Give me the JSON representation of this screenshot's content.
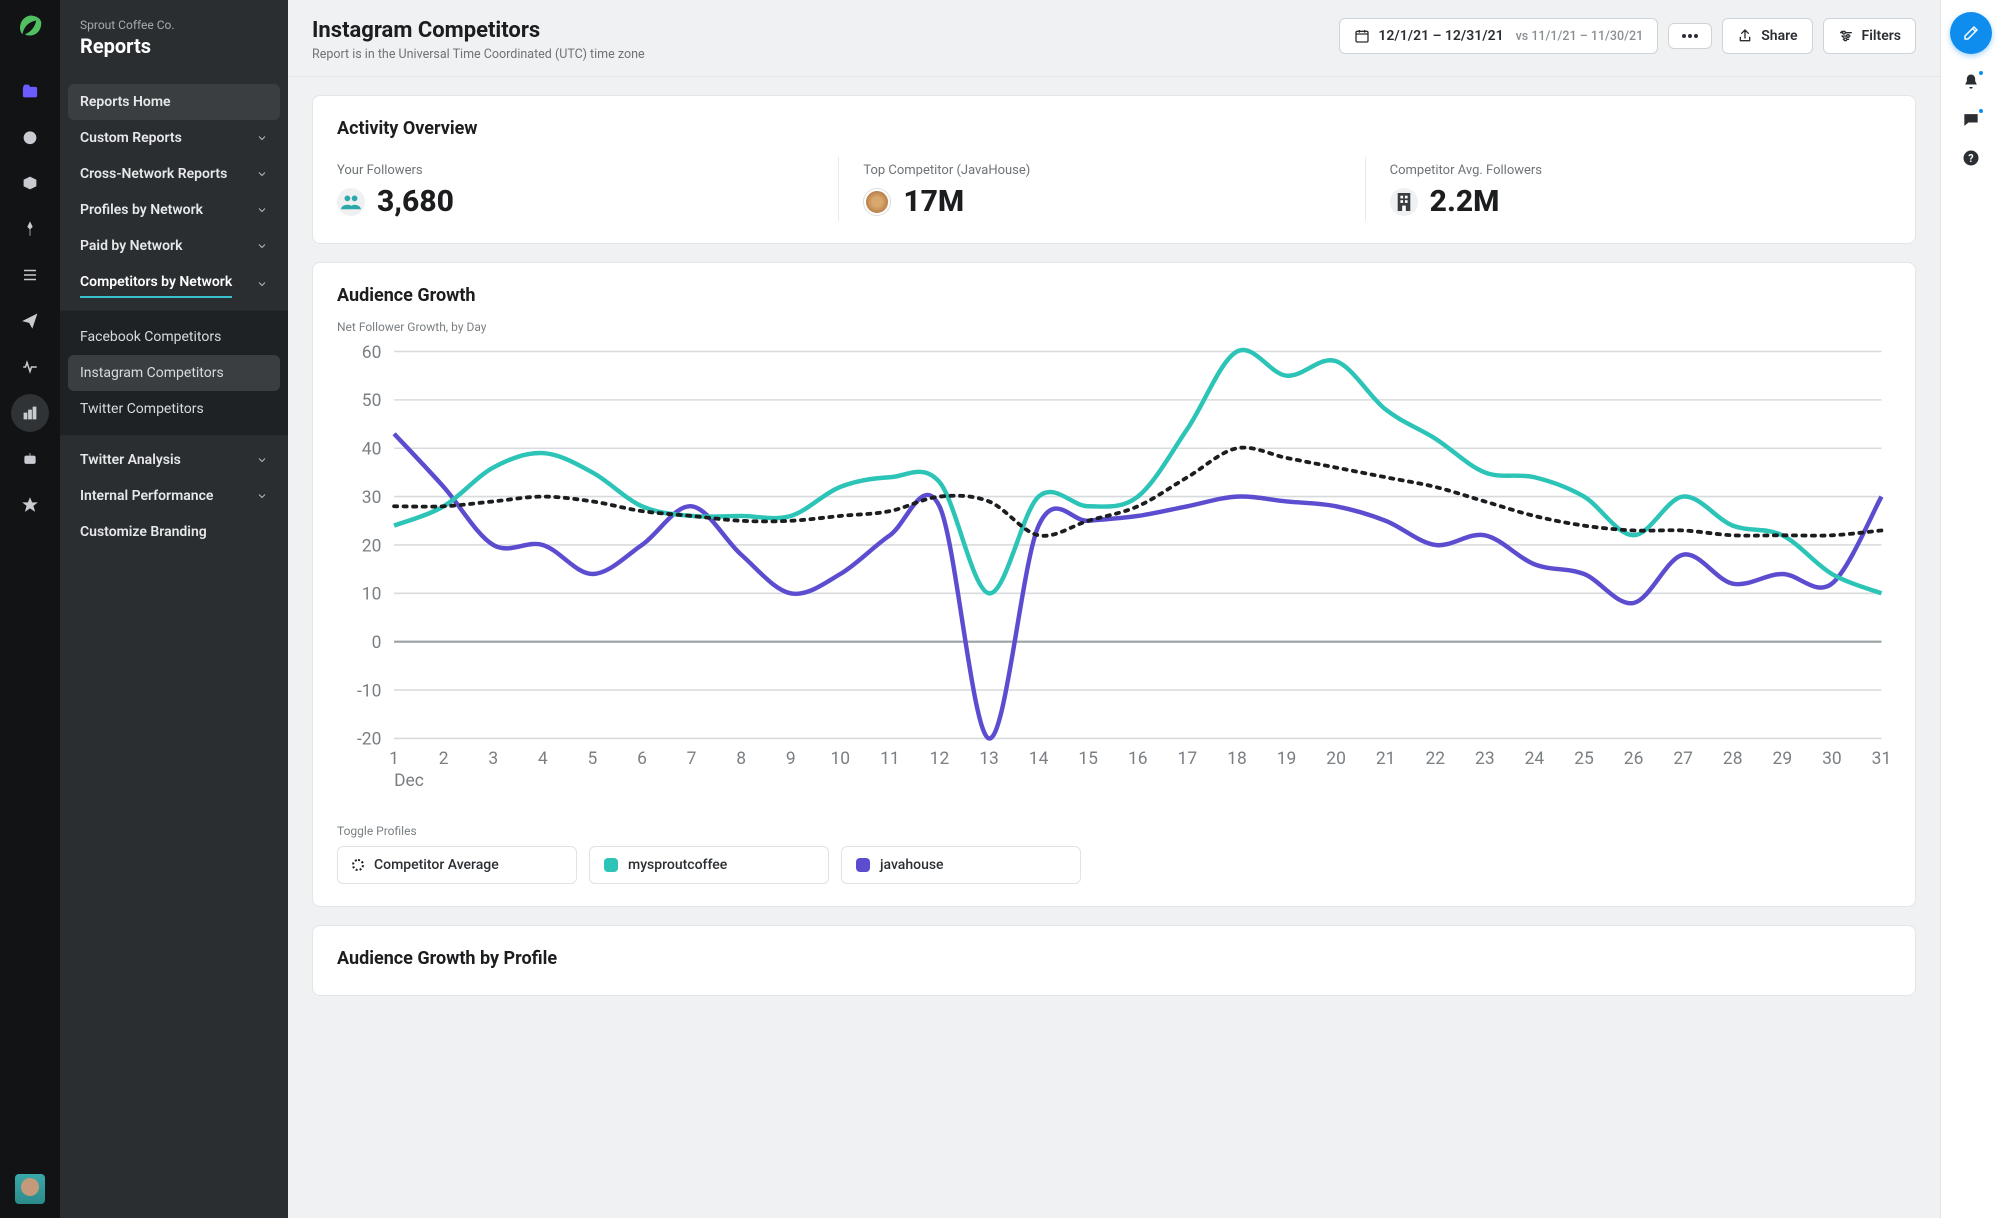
{
  "org": "Sprout Coffee Co.",
  "section": "Reports",
  "rail": [
    {
      "name": "folder",
      "active": false,
      "glyph": "folder"
    },
    {
      "name": "gauge",
      "glyph": "gauge"
    },
    {
      "name": "inbox",
      "glyph": "inbox"
    },
    {
      "name": "pin",
      "glyph": "pin"
    },
    {
      "name": "list",
      "glyph": "list"
    },
    {
      "name": "send",
      "glyph": "send"
    },
    {
      "name": "pulse",
      "glyph": "pulse"
    },
    {
      "name": "reports",
      "glyph": "reports",
      "active": true
    },
    {
      "name": "bot",
      "glyph": "bot"
    },
    {
      "name": "star",
      "glyph": "star"
    }
  ],
  "nav": {
    "home": "Reports Home",
    "groups": [
      {
        "label": "Custom Reports"
      },
      {
        "label": "Cross-Network Reports"
      },
      {
        "label": "Profiles by Network"
      },
      {
        "label": "Paid by Network"
      },
      {
        "label": "Competitors by Network",
        "selected": true
      }
    ],
    "sub": [
      {
        "label": "Facebook Competitors"
      },
      {
        "label": "Instagram Competitors",
        "active": true
      },
      {
        "label": "Twitter Competitors"
      }
    ],
    "tail": [
      {
        "label": "Twitter Analysis",
        "chev": true
      },
      {
        "label": "Internal Performance",
        "chev": true
      },
      {
        "label": "Customize Branding",
        "chev": false
      }
    ]
  },
  "page": {
    "title": "Instagram Competitors",
    "subtitle": "Report is in the Universal Time Coordinated (UTC) time zone",
    "date_range": "12/1/21 – 12/31/21",
    "date_vs": "vs 11/1/21 – 11/30/21",
    "share_label": "Share",
    "filters_label": "Filters"
  },
  "overview": {
    "title": "Activity Overview",
    "metrics": [
      {
        "label": "Your Followers",
        "value": "3,680",
        "icon": "users",
        "icon_color": "#2ca7aa"
      },
      {
        "label": "Top Competitor (JavaHouse)",
        "value": "17M",
        "icon": "avatar"
      },
      {
        "label": "Competitor Avg. Followers",
        "value": "2.2M",
        "icon": "building"
      }
    ]
  },
  "growth": {
    "title": "Audience Growth",
    "chart_subtitle": "Net Follower Growth, by Day",
    "type": "line",
    "x_month": "Dec",
    "x_days": [
      1,
      2,
      3,
      4,
      5,
      6,
      7,
      8,
      9,
      10,
      11,
      12,
      13,
      14,
      15,
      16,
      17,
      18,
      19,
      20,
      21,
      22,
      23,
      24,
      25,
      26,
      27,
      28,
      29,
      30,
      31
    ],
    "ylim": [
      -20,
      60
    ],
    "yticks": [
      -20,
      -10,
      0,
      10,
      20,
      30,
      40,
      50,
      60
    ],
    "grid_color": "#d8dbdd",
    "zero_color": "#9aa0a4",
    "background": "#ffffff",
    "series": {
      "competitor_avg": {
        "label": "Competitor Average",
        "color": "#1b1d1f",
        "style": "dotted",
        "width": 2.4,
        "values": [
          28,
          28,
          29,
          30,
          29,
          27,
          26,
          25,
          25,
          26,
          27,
          30,
          29,
          22,
          25,
          28,
          34,
          40,
          38,
          36,
          34,
          32,
          29,
          26,
          24,
          23,
          23,
          22,
          22,
          22,
          23
        ]
      },
      "mysproutcoffee": {
        "label": "mysproutcoffee",
        "color": "#2bc4b6",
        "style": "solid",
        "width": 2.8,
        "values": [
          24,
          28,
          36,
          39,
          35,
          28,
          26,
          26,
          26,
          32,
          34,
          33,
          10,
          30,
          28,
          30,
          44,
          60,
          55,
          58,
          48,
          42,
          35,
          34,
          30,
          22,
          30,
          24,
          22,
          14,
          10
        ]
      },
      "javahouse": {
        "label": "javahouse",
        "color": "#5c4dd0",
        "style": "solid",
        "width": 2.8,
        "values": [
          43,
          32,
          20,
          20,
          14,
          20,
          28,
          18,
          10,
          14,
          22,
          28,
          -20,
          24,
          25,
          26,
          28,
          30,
          29,
          28,
          25,
          20,
          22,
          16,
          14,
          8,
          18,
          12,
          14,
          12,
          30
        ]
      }
    },
    "toggle_label": "Toggle Profiles",
    "legend": [
      {
        "key": "competitor_avg",
        "label": "Competitor Average",
        "swatch": "dash"
      },
      {
        "key": "mysproutcoffee",
        "label": "mysproutcoffee",
        "swatch": "#2bc4b6"
      },
      {
        "key": "javahouse",
        "label": "javahouse",
        "swatch": "#5c4dd0"
      }
    ]
  },
  "growth_by_profile": {
    "title": "Audience Growth by Profile"
  },
  "colors": {
    "teal": "#2bc4b6",
    "purple": "#5c4dd0",
    "accent_blue": "#0f8dee",
    "rail_bg": "#111315",
    "sidebar_bg": "#2a2e31"
  }
}
